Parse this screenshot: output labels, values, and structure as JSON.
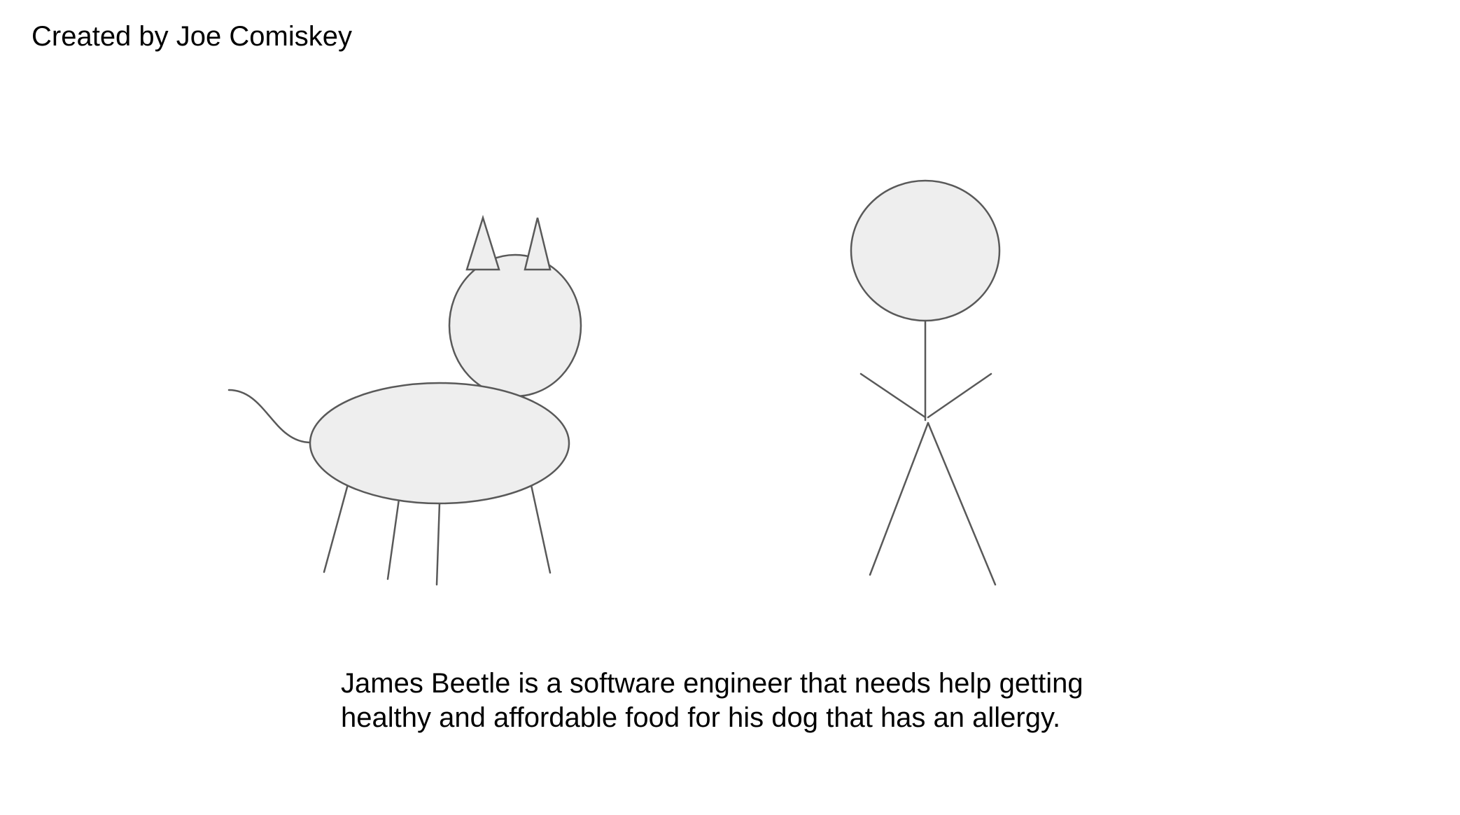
{
  "slide": {
    "credit": "Created by Joe Comiskey",
    "caption_lines": [
      "James Beetle is a software engineer that needs help getting",
      "healthy and affordable food for his dog that has an allergy."
    ]
  },
  "colors": {
    "background": "#ffffff",
    "shape_fill": "#eeeeee",
    "stroke": "#595959",
    "text": "#000000"
  }
}
